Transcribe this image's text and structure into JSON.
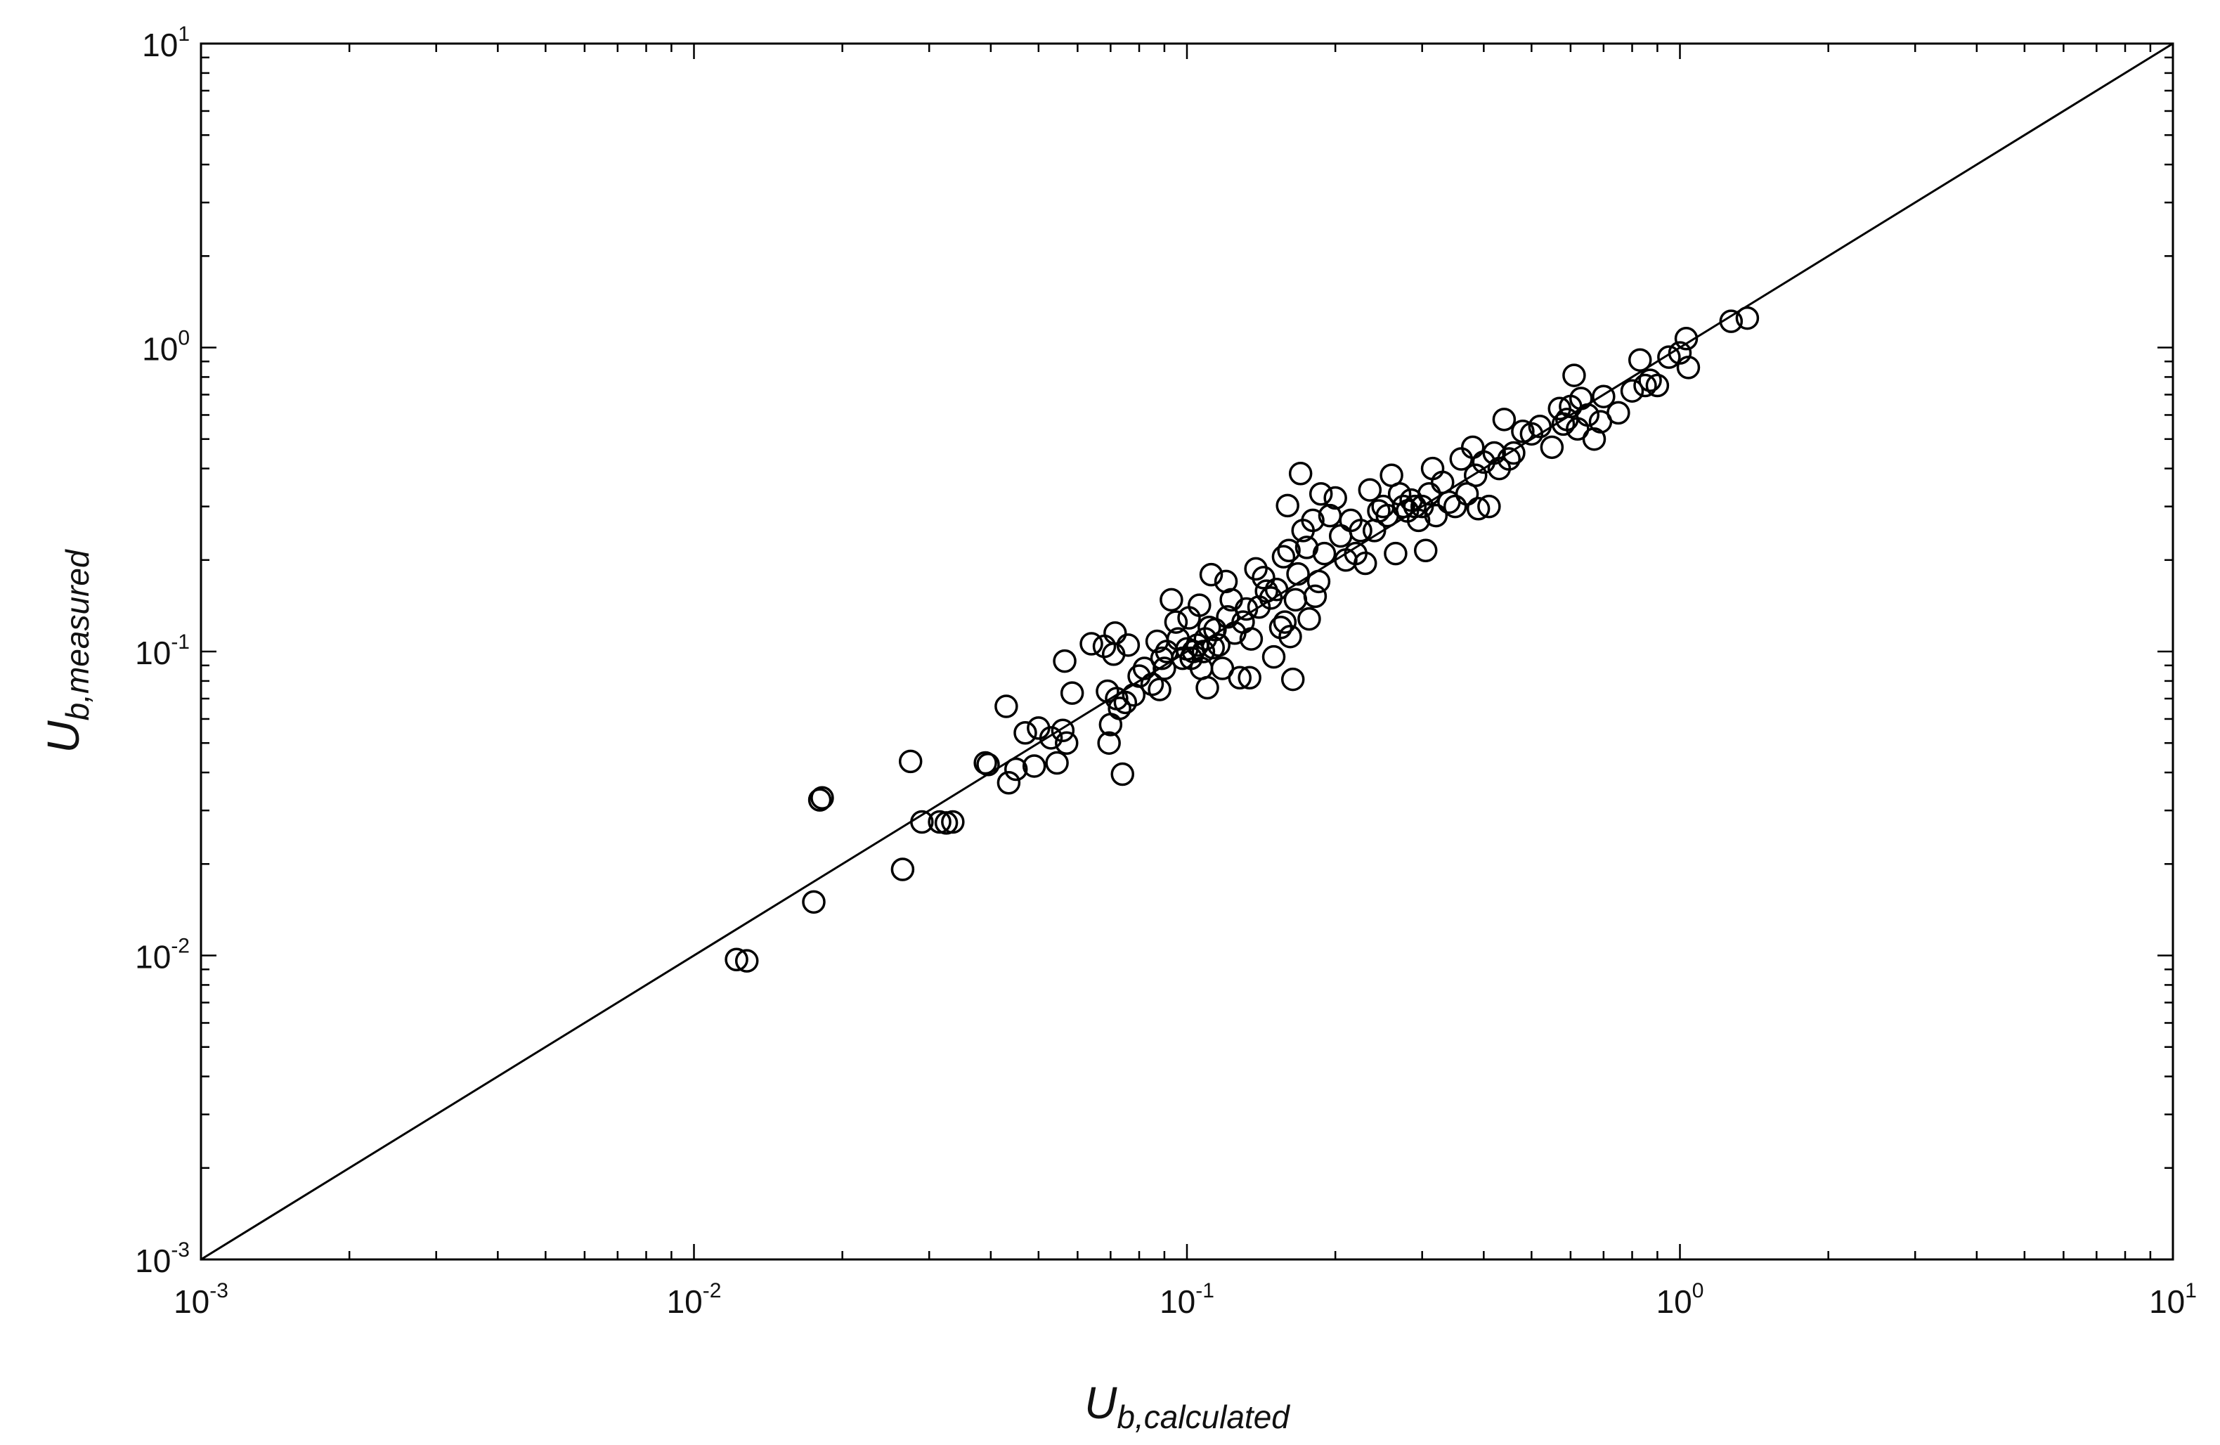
{
  "chart_data": {
    "type": "scatter",
    "x_scale": "log",
    "y_scale": "log",
    "xlim": [
      0.001,
      10
    ],
    "ylim": [
      0.001,
      10
    ],
    "grid": false,
    "legend": "none",
    "xlabel": {
      "main": "U",
      "sub": "b,calculated"
    },
    "ylabel": {
      "main": "U",
      "sub": "b,measured"
    },
    "x_ticks": [
      {
        "value": 0.001,
        "base": "10",
        "exp": "-3"
      },
      {
        "value": 0.01,
        "base": "10",
        "exp": "-2"
      },
      {
        "value": 0.1,
        "base": "10",
        "exp": "-1"
      },
      {
        "value": 1,
        "base": "10",
        "exp": "0"
      },
      {
        "value": 10,
        "base": "10",
        "exp": "1"
      }
    ],
    "y_ticks": [
      {
        "value": 0.001,
        "base": "10",
        "exp": "-3"
      },
      {
        "value": 0.01,
        "base": "10",
        "exp": "-2"
      },
      {
        "value": 0.1,
        "base": "10",
        "exp": "-1"
      },
      {
        "value": 1,
        "base": "10",
        "exp": "0"
      },
      {
        "value": 10,
        "base": "10",
        "exp": "1"
      }
    ],
    "reference_line": {
      "from": [
        0.001,
        0.001
      ],
      "to": [
        10,
        10
      ]
    },
    "marker": {
      "shape": "open-circle",
      "color": "#000000"
    },
    "points": [
      [
        0.0122,
        0.0097
      ],
      [
        0.0128,
        0.0096
      ],
      [
        0.0175,
        0.015
      ],
      [
        0.018,
        0.0325
      ],
      [
        0.0182,
        0.033
      ],
      [
        0.0265,
        0.0192
      ],
      [
        0.0275,
        0.0435
      ],
      [
        0.029,
        0.0275
      ],
      [
        0.0315,
        0.0275
      ],
      [
        0.0325,
        0.0273
      ],
      [
        0.0335,
        0.0275
      ],
      [
        0.039,
        0.043
      ],
      [
        0.0395,
        0.0425
      ],
      [
        0.043,
        0.066
      ],
      [
        0.0435,
        0.037
      ],
      [
        0.045,
        0.041
      ],
      [
        0.047,
        0.054
      ],
      [
        0.049,
        0.042
      ],
      [
        0.05,
        0.056
      ],
      [
        0.053,
        0.052
      ],
      [
        0.0545,
        0.043
      ],
      [
        0.056,
        0.055
      ],
      [
        0.0565,
        0.093
      ],
      [
        0.057,
        0.05
      ],
      [
        0.0585,
        0.073
      ],
      [
        0.064,
        0.106
      ],
      [
        0.068,
        0.104
      ],
      [
        0.069,
        0.074
      ],
      [
        0.0695,
        0.05
      ],
      [
        0.07,
        0.0575
      ],
      [
        0.071,
        0.098
      ],
      [
        0.0715,
        0.115
      ],
      [
        0.072,
        0.07
      ],
      [
        0.073,
        0.065
      ],
      [
        0.074,
        0.0395
      ],
      [
        0.075,
        0.068
      ],
      [
        0.076,
        0.105
      ],
      [
        0.078,
        0.072
      ],
      [
        0.08,
        0.083
      ],
      [
        0.082,
        0.088
      ],
      [
        0.085,
        0.078
      ],
      [
        0.087,
        0.108
      ],
      [
        0.088,
        0.075
      ],
      [
        0.089,
        0.095
      ],
      [
        0.09,
        0.088
      ],
      [
        0.091,
        0.1
      ],
      [
        0.093,
        0.148
      ],
      [
        0.095,
        0.125
      ],
      [
        0.096,
        0.11
      ],
      [
        0.098,
        0.095
      ],
      [
        0.1,
        0.102
      ],
      [
        0.101,
        0.129
      ],
      [
        0.102,
        0.095
      ],
      [
        0.103,
        0.1
      ],
      [
        0.105,
        0.105
      ],
      [
        0.106,
        0.142
      ],
      [
        0.107,
        0.088
      ],
      [
        0.108,
        0.1
      ],
      [
        0.109,
        0.11
      ],
      [
        0.11,
        0.076
      ],
      [
        0.111,
        0.12
      ],
      [
        0.112,
        0.179
      ],
      [
        0.113,
        0.103
      ],
      [
        0.114,
        0.118
      ],
      [
        0.116,
        0.105
      ],
      [
        0.118,
        0.088
      ],
      [
        0.12,
        0.17
      ],
      [
        0.121,
        0.13
      ],
      [
        0.123,
        0.148
      ],
      [
        0.125,
        0.115
      ],
      [
        0.128,
        0.082
      ],
      [
        0.13,
        0.125
      ],
      [
        0.132,
        0.138
      ],
      [
        0.134,
        0.082
      ],
      [
        0.135,
        0.11
      ],
      [
        0.138,
        0.187
      ],
      [
        0.14,
        0.14
      ],
      [
        0.143,
        0.175
      ],
      [
        0.145,
        0.158
      ],
      [
        0.148,
        0.15
      ],
      [
        0.15,
        0.096
      ],
      [
        0.152,
        0.16
      ],
      [
        0.155,
        0.12
      ],
      [
        0.157,
        0.205
      ],
      [
        0.158,
        0.125
      ],
      [
        0.16,
        0.302
      ],
      [
        0.161,
        0.215
      ],
      [
        0.162,
        0.112
      ],
      [
        0.164,
        0.081
      ],
      [
        0.166,
        0.148
      ],
      [
        0.168,
        0.18
      ],
      [
        0.17,
        0.385
      ],
      [
        0.172,
        0.25
      ],
      [
        0.175,
        0.22
      ],
      [
        0.177,
        0.128
      ],
      [
        0.18,
        0.27
      ],
      [
        0.182,
        0.152
      ],
      [
        0.185,
        0.17
      ],
      [
        0.187,
        0.33
      ],
      [
        0.19,
        0.21
      ],
      [
        0.195,
        0.28
      ],
      [
        0.2,
        0.32
      ],
      [
        0.205,
        0.24
      ],
      [
        0.21,
        0.2
      ],
      [
        0.215,
        0.27
      ],
      [
        0.22,
        0.21
      ],
      [
        0.225,
        0.25
      ],
      [
        0.23,
        0.195
      ],
      [
        0.235,
        0.34
      ],
      [
        0.24,
        0.25
      ],
      [
        0.245,
        0.29
      ],
      [
        0.25,
        0.3
      ],
      [
        0.255,
        0.28
      ],
      [
        0.26,
        0.38
      ],
      [
        0.265,
        0.21
      ],
      [
        0.27,
        0.33
      ],
      [
        0.275,
        0.3
      ],
      [
        0.28,
        0.29
      ],
      [
        0.285,
        0.315
      ],
      [
        0.29,
        0.3
      ],
      [
        0.295,
        0.27
      ],
      [
        0.3,
        0.3
      ],
      [
        0.305,
        0.215
      ],
      [
        0.31,
        0.33
      ],
      [
        0.315,
        0.4
      ],
      [
        0.32,
        0.28
      ],
      [
        0.33,
        0.36
      ],
      [
        0.34,
        0.31
      ],
      [
        0.35,
        0.3
      ],
      [
        0.36,
        0.43
      ],
      [
        0.37,
        0.33
      ],
      [
        0.38,
        0.47
      ],
      [
        0.385,
        0.38
      ],
      [
        0.39,
        0.295
      ],
      [
        0.4,
        0.42
      ],
      [
        0.41,
        0.3
      ],
      [
        0.42,
        0.45
      ],
      [
        0.43,
        0.4
      ],
      [
        0.44,
        0.58
      ],
      [
        0.45,
        0.43
      ],
      [
        0.46,
        0.45
      ],
      [
        0.48,
        0.53
      ],
      [
        0.5,
        0.52
      ],
      [
        0.52,
        0.55
      ],
      [
        0.55,
        0.47
      ],
      [
        0.57,
        0.63
      ],
      [
        0.58,
        0.56
      ],
      [
        0.59,
        0.58
      ],
      [
        0.6,
        0.64
      ],
      [
        0.61,
        0.81
      ],
      [
        0.62,
        0.54
      ],
      [
        0.63,
        0.68
      ],
      [
        0.65,
        0.6
      ],
      [
        0.67,
        0.5
      ],
      [
        0.69,
        0.57
      ],
      [
        0.7,
        0.69
      ],
      [
        0.75,
        0.61
      ],
      [
        0.8,
        0.72
      ],
      [
        0.83,
        0.91
      ],
      [
        0.85,
        0.75
      ],
      [
        0.87,
        0.78
      ],
      [
        0.9,
        0.75
      ],
      [
        0.95,
        0.93
      ],
      [
        1.0,
        0.96
      ],
      [
        1.03,
        1.07
      ],
      [
        1.04,
        0.86
      ],
      [
        1.27,
        1.22
      ],
      [
        1.37,
        1.25
      ]
    ]
  }
}
